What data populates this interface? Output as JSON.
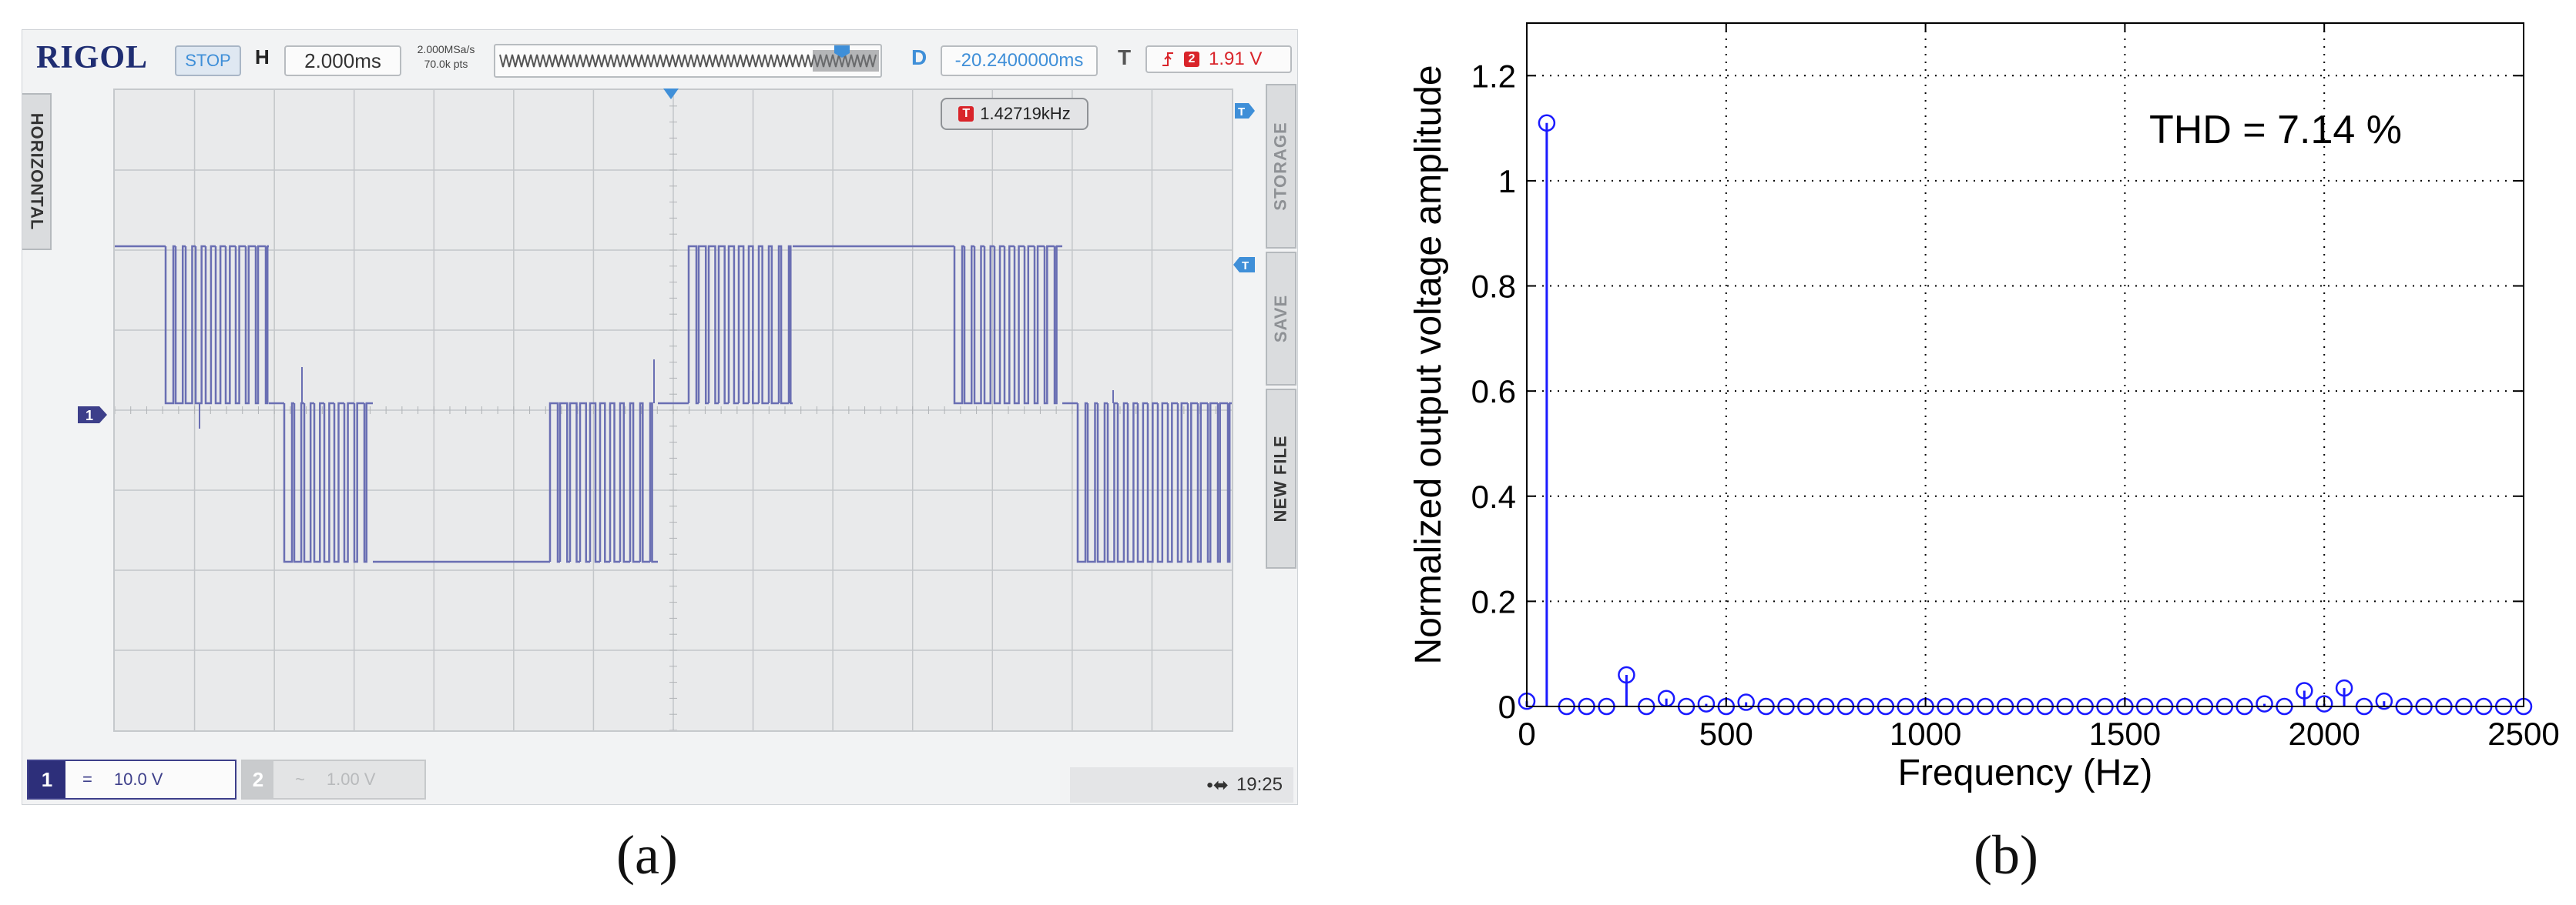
{
  "panel_a": {
    "label": "(a)",
    "logo": "RIGOL",
    "status": "STOP",
    "horizontal_letter": "H",
    "timebase": "2.000ms",
    "sample_rate": "2.000MSa/s",
    "points": "70.0k pts",
    "delay_letter": "D",
    "delay": "-20.2400000ms",
    "trigger_letter": "T",
    "trigger_channel": "2",
    "trigger_level": "1.91 V",
    "trigger_badge": "T",
    "frequency": "1.42719kHz",
    "side_menu": [
      "HORIZONTAL",
      "STORAGE",
      "SAVE",
      "NEW FILE"
    ],
    "channel1": {
      "number": "1",
      "coupling": "=",
      "scale": "10.0 V"
    },
    "channel2": {
      "number": "2",
      "coupling": "~",
      "scale": "1.00 V"
    },
    "time": "19:25",
    "usb_icon": "usb-icon",
    "waveform_color": "#6a6fb3"
  },
  "panel_b": {
    "label": "(b)",
    "annotation": "THD = 7.14 %"
  },
  "chart_data": {
    "type": "stem",
    "title": "",
    "xlabel": "Frequency (Hz)",
    "ylabel": "Normalized output voltage amplitude",
    "xlim": [
      0,
      2500
    ],
    "ylim": [
      0,
      1.3
    ],
    "xticks": [
      0,
      500,
      1000,
      1500,
      2000,
      2500
    ],
    "xtick_labels": [
      "0",
      "500",
      "1000",
      "1500",
      "2000",
      "2500"
    ],
    "yticks": [
      0,
      0.2,
      0.4,
      0.6,
      0.8,
      1,
      1.2
    ],
    "ytick_labels": [
      "0",
      "0.2",
      "0.4",
      "0.6",
      "0.8",
      "1",
      "1.2"
    ],
    "grid": true,
    "color": "#1a1aff",
    "x": [
      0,
      50,
      100,
      150,
      200,
      250,
      300,
      350,
      400,
      450,
      500,
      550,
      600,
      650,
      700,
      750,
      800,
      850,
      900,
      950,
      1000,
      1050,
      1100,
      1150,
      1200,
      1250,
      1300,
      1350,
      1400,
      1450,
      1500,
      1550,
      1600,
      1650,
      1700,
      1750,
      1800,
      1850,
      1900,
      1950,
      2000,
      2050,
      2100,
      2150,
      2200,
      2250,
      2300,
      2350,
      2400,
      2450,
      2500
    ],
    "y": [
      0.01,
      1.11,
      0,
      0,
      0,
      0.06,
      0,
      0.015,
      0,
      0.005,
      0,
      0.008,
      0,
      0,
      0,
      0,
      0,
      0,
      0,
      0,
      0,
      0,
      0,
      0,
      0,
      0,
      0,
      0,
      0,
      0,
      0,
      0,
      0,
      0,
      0,
      0,
      0,
      0.005,
      0,
      0.03,
      0.005,
      0.035,
      0,
      0.01,
      0,
      0,
      0,
      0,
      0,
      0,
      0
    ]
  }
}
